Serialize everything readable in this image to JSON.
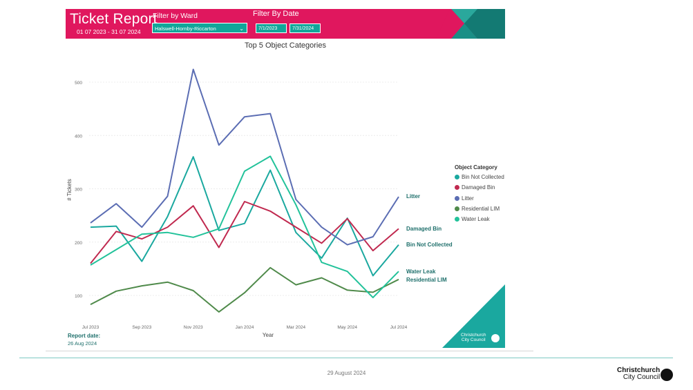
{
  "header": {
    "title": "Ticket Report",
    "date_range": "01 07 2023 - 31 07 2024",
    "ward_label": "Filter by Ward",
    "ward_value": "Halswell-Hornby-Riccarton",
    "date_label": "Filter By Date",
    "date_start": "7/1/2023",
    "date_end": "7/31/2024",
    "brand_color": "#e0175e",
    "accent_color": "#12a69a"
  },
  "report": {
    "date_label": "Report date:",
    "date_value": "26 Aug 2024"
  },
  "footer": {
    "date": "29 August 2024",
    "logo_line1": "Christchurch",
    "logo_line2": "City Council",
    "corner_logo_line1": "Christchurch",
    "corner_logo_line2": "City Council"
  },
  "chart_data": {
    "type": "line",
    "title": "Top 5 Object Categories",
    "xlabel": "Year",
    "ylabel": "# Tickets",
    "x": [
      "Jul 2023",
      "Aug 2023",
      "Sep 2023",
      "Oct 2023",
      "Nov 2023",
      "Dec 2023",
      "Jan 2024",
      "Feb 2024",
      "Mar 2024",
      "Apr 2024",
      "May 2024",
      "Jun 2024",
      "Jul 2024"
    ],
    "x_tick_labels": [
      "Jul 2023",
      "Sep 2023",
      "Nov 2023",
      "Jan 2024",
      "Mar 2024",
      "May 2024",
      "Jul 2024"
    ],
    "y_ticks": [
      100,
      200,
      300,
      400,
      500
    ],
    "ylim": [
      60,
      530
    ],
    "grid": true,
    "legend_title": "Object Category",
    "legend_position": "right",
    "series": [
      {
        "name": "Bin Not Collected",
        "color": "#1aa89f",
        "end_label": "Bin Not Collected",
        "values": [
          228,
          230,
          164,
          248,
          360,
          222,
          235,
          335,
          218,
          170,
          245,
          137,
          195
        ]
      },
      {
        "name": "Damaged Bin",
        "color": "#c0294f",
        "end_label": "Damaged Bin",
        "values": [
          160,
          220,
          206,
          228,
          268,
          190,
          276,
          258,
          228,
          198,
          244,
          184,
          225
        ]
      },
      {
        "name": "Litter",
        "color": "#5b6db3",
        "end_label": "Litter",
        "values": [
          236,
          272,
          228,
          286,
          524,
          382,
          435,
          441,
          280,
          228,
          195,
          210,
          285
        ]
      },
      {
        "name": "Residential LIM",
        "color": "#4f8a4a",
        "end_label": "Residential LIM",
        "values": [
          83,
          108,
          118,
          125,
          109,
          69,
          105,
          152,
          120,
          133,
          110,
          106,
          130
        ]
      },
      {
        "name": "Water Leak",
        "color": "#22c29a",
        "end_label": "Water Leak",
        "values": [
          157,
          186,
          215,
          218,
          209,
          225,
          333,
          361,
          270,
          162,
          145,
          96,
          145
        ]
      }
    ]
  }
}
